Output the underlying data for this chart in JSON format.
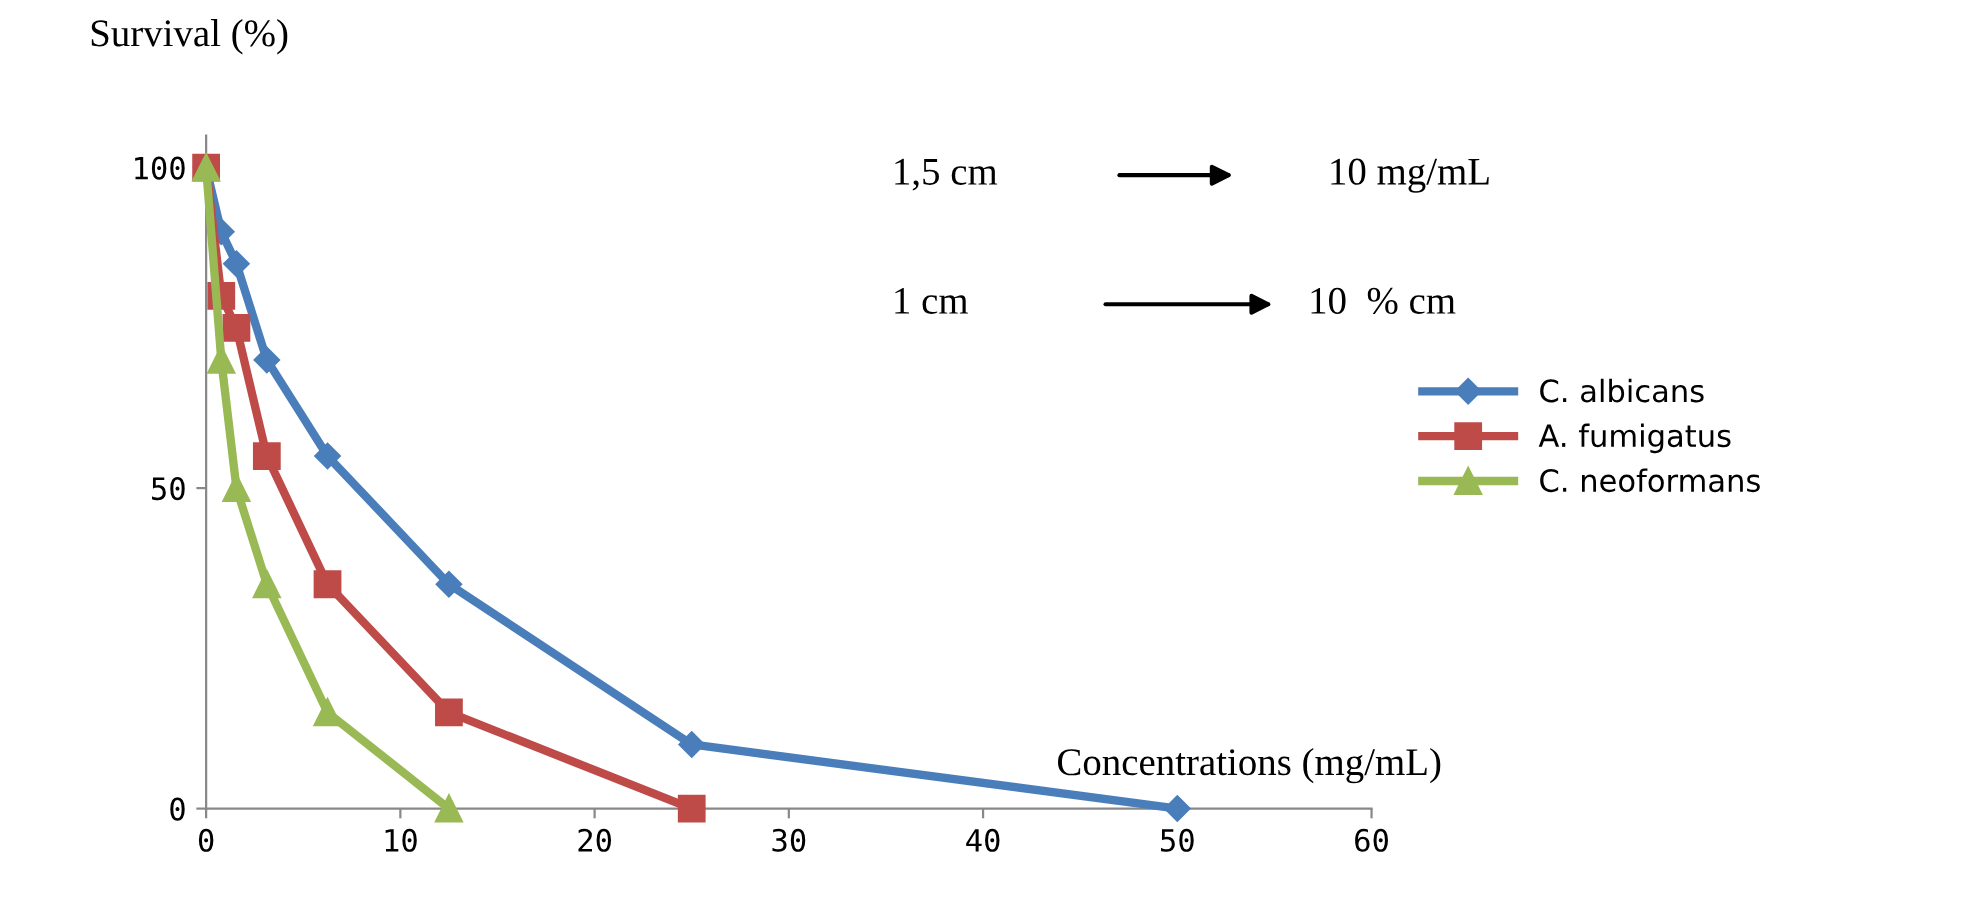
{
  "chart_data": {
    "type": "line",
    "ylabel": "Survival (%)",
    "xlabel": "Concentrations (mg/mL)",
    "xlim": [
      0,
      60
    ],
    "xticks": [
      0,
      10,
      20,
      30,
      40,
      50,
      60
    ],
    "ylim": [
      0,
      105
    ],
    "yticks": [
      0,
      50,
      100
    ],
    "grid": false,
    "legend": "right",
    "series": [
      {
        "name": "C. albicans",
        "color": "#4a7ebb",
        "marker": "diamond",
        "x": [
          0,
          0.78,
          1.56,
          3.125,
          6.25,
          12.5,
          25,
          50
        ],
        "values": [
          100,
          90,
          85,
          70,
          55,
          35,
          10,
          0
        ]
      },
      {
        "name": "A. fumigatus",
        "color": "#be4b48",
        "marker": "square",
        "x": [
          0,
          0.78,
          1.56,
          3.125,
          6.25,
          12.5,
          25
        ],
        "values": [
          100,
          80,
          75,
          55,
          35,
          15,
          0
        ]
      },
      {
        "name": "C. neoformans",
        "color": "#98b954",
        "marker": "triangle",
        "x": [
          0,
          0.78,
          1.56,
          3.125,
          6.25,
          12.5
        ],
        "values": [
          100,
          70,
          50,
          35,
          15,
          0
        ]
      }
    ],
    "annotations": [
      "1,5 cm",
      "10 mg/mL",
      "1 cm",
      "10  % cm"
    ]
  }
}
